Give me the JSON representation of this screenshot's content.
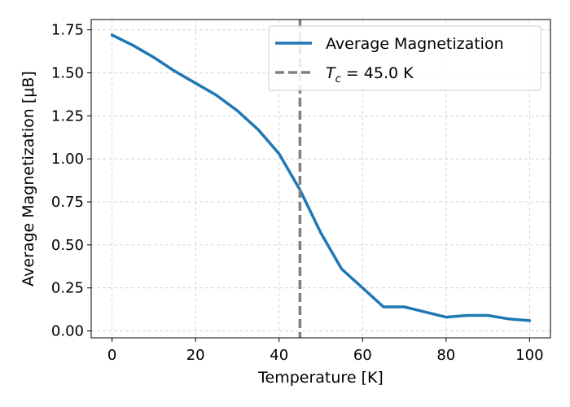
{
  "chart_data": {
    "type": "line",
    "title": "",
    "xlabel": "Temperature [K]",
    "ylabel": "Average Magnetization [μB]",
    "xlim": [
      -5,
      105
    ],
    "ylim": [
      -0.04,
      1.81
    ],
    "xticks": [
      0,
      20,
      40,
      60,
      80,
      100
    ],
    "yticks": [
      0.0,
      0.25,
      0.5,
      0.75,
      1.0,
      1.25,
      1.5,
      1.75
    ],
    "ytick_labels": [
      "0.00",
      "0.25",
      "0.50",
      "0.75",
      "1.00",
      "1.25",
      "1.50",
      "1.75"
    ],
    "grid": true,
    "legend_position": "top-right",
    "series": [
      {
        "name": "Average Magnetization",
        "color": "#1f77b4",
        "x": [
          0,
          5,
          10,
          15,
          20,
          25,
          30,
          35,
          40,
          45,
          50,
          55,
          60,
          65,
          70,
          75,
          80,
          85,
          90,
          95,
          100
        ],
        "y": [
          1.72,
          1.66,
          1.59,
          1.51,
          1.44,
          1.37,
          1.28,
          1.17,
          1.03,
          0.82,
          0.57,
          0.36,
          0.25,
          0.14,
          0.14,
          0.11,
          0.08,
          0.09,
          0.09,
          0.07,
          0.06
        ]
      }
    ],
    "vline": {
      "x": 45.0,
      "color": "#808080",
      "label_symbol": "T",
      "label_subscript": "c",
      "label_suffix": " = 45.0 K"
    }
  }
}
